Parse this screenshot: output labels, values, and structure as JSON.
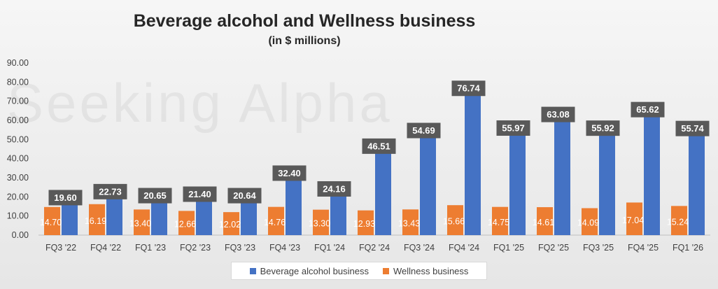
{
  "chart_data": {
    "type": "bar",
    "title": "Beverage alcohol and Wellness business",
    "subtitle": "(in $ millions)",
    "categories": [
      "FQ3 '22",
      "FQ4 '22",
      "FQ1 '23",
      "FQ2 '23",
      "FQ3 '23",
      "FQ4 '23",
      "FQ1 '24",
      "FQ2 '24",
      "FQ3 '24",
      "FQ4 '24",
      "FQ1 '25",
      "FQ2 '25",
      "FQ3 '25",
      "FQ4 '25",
      "FQ1 '26"
    ],
    "series": [
      {
        "name": "Wellness business",
        "color": "#ed7d31",
        "values": [
          14.7,
          16.19,
          13.4,
          12.66,
          12.02,
          14.76,
          13.3,
          12.93,
          13.43,
          15.66,
          14.75,
          14.61,
          14.09,
          17.04,
          15.24
        ],
        "labels": [
          "14.70",
          "16.19",
          "13.40",
          "12.66",
          "12.02",
          "14.76",
          "13.30",
          "12.93",
          "13.43",
          "15.66",
          "14.75",
          "14.61",
          "14.09",
          "17.04",
          "15.24"
        ]
      },
      {
        "name": "Beverage alcohol business",
        "color": "#4472c4",
        "values": [
          19.6,
          22.73,
          20.65,
          21.4,
          20.64,
          32.4,
          24.16,
          46.51,
          54.69,
          76.74,
          55.97,
          63.08,
          55.92,
          65.62,
          55.74
        ],
        "labels": [
          "19.60",
          "22.73",
          "20.65",
          "21.40",
          "20.64",
          "32.40",
          "24.16",
          "46.51",
          "54.69",
          "76.74",
          "55.97",
          "63.08",
          "55.92",
          "65.62",
          "55.74"
        ]
      }
    ],
    "ylim": [
      0,
      90
    ],
    "yticks": [
      "0.00",
      "10.00",
      "20.00",
      "30.00",
      "40.00",
      "50.00",
      "60.00",
      "70.00",
      "80.00",
      "90.00"
    ],
    "legend_position": "bottom",
    "label_box_color": "#595959",
    "gridlines": false
  },
  "watermark": "Seeking Alpha"
}
